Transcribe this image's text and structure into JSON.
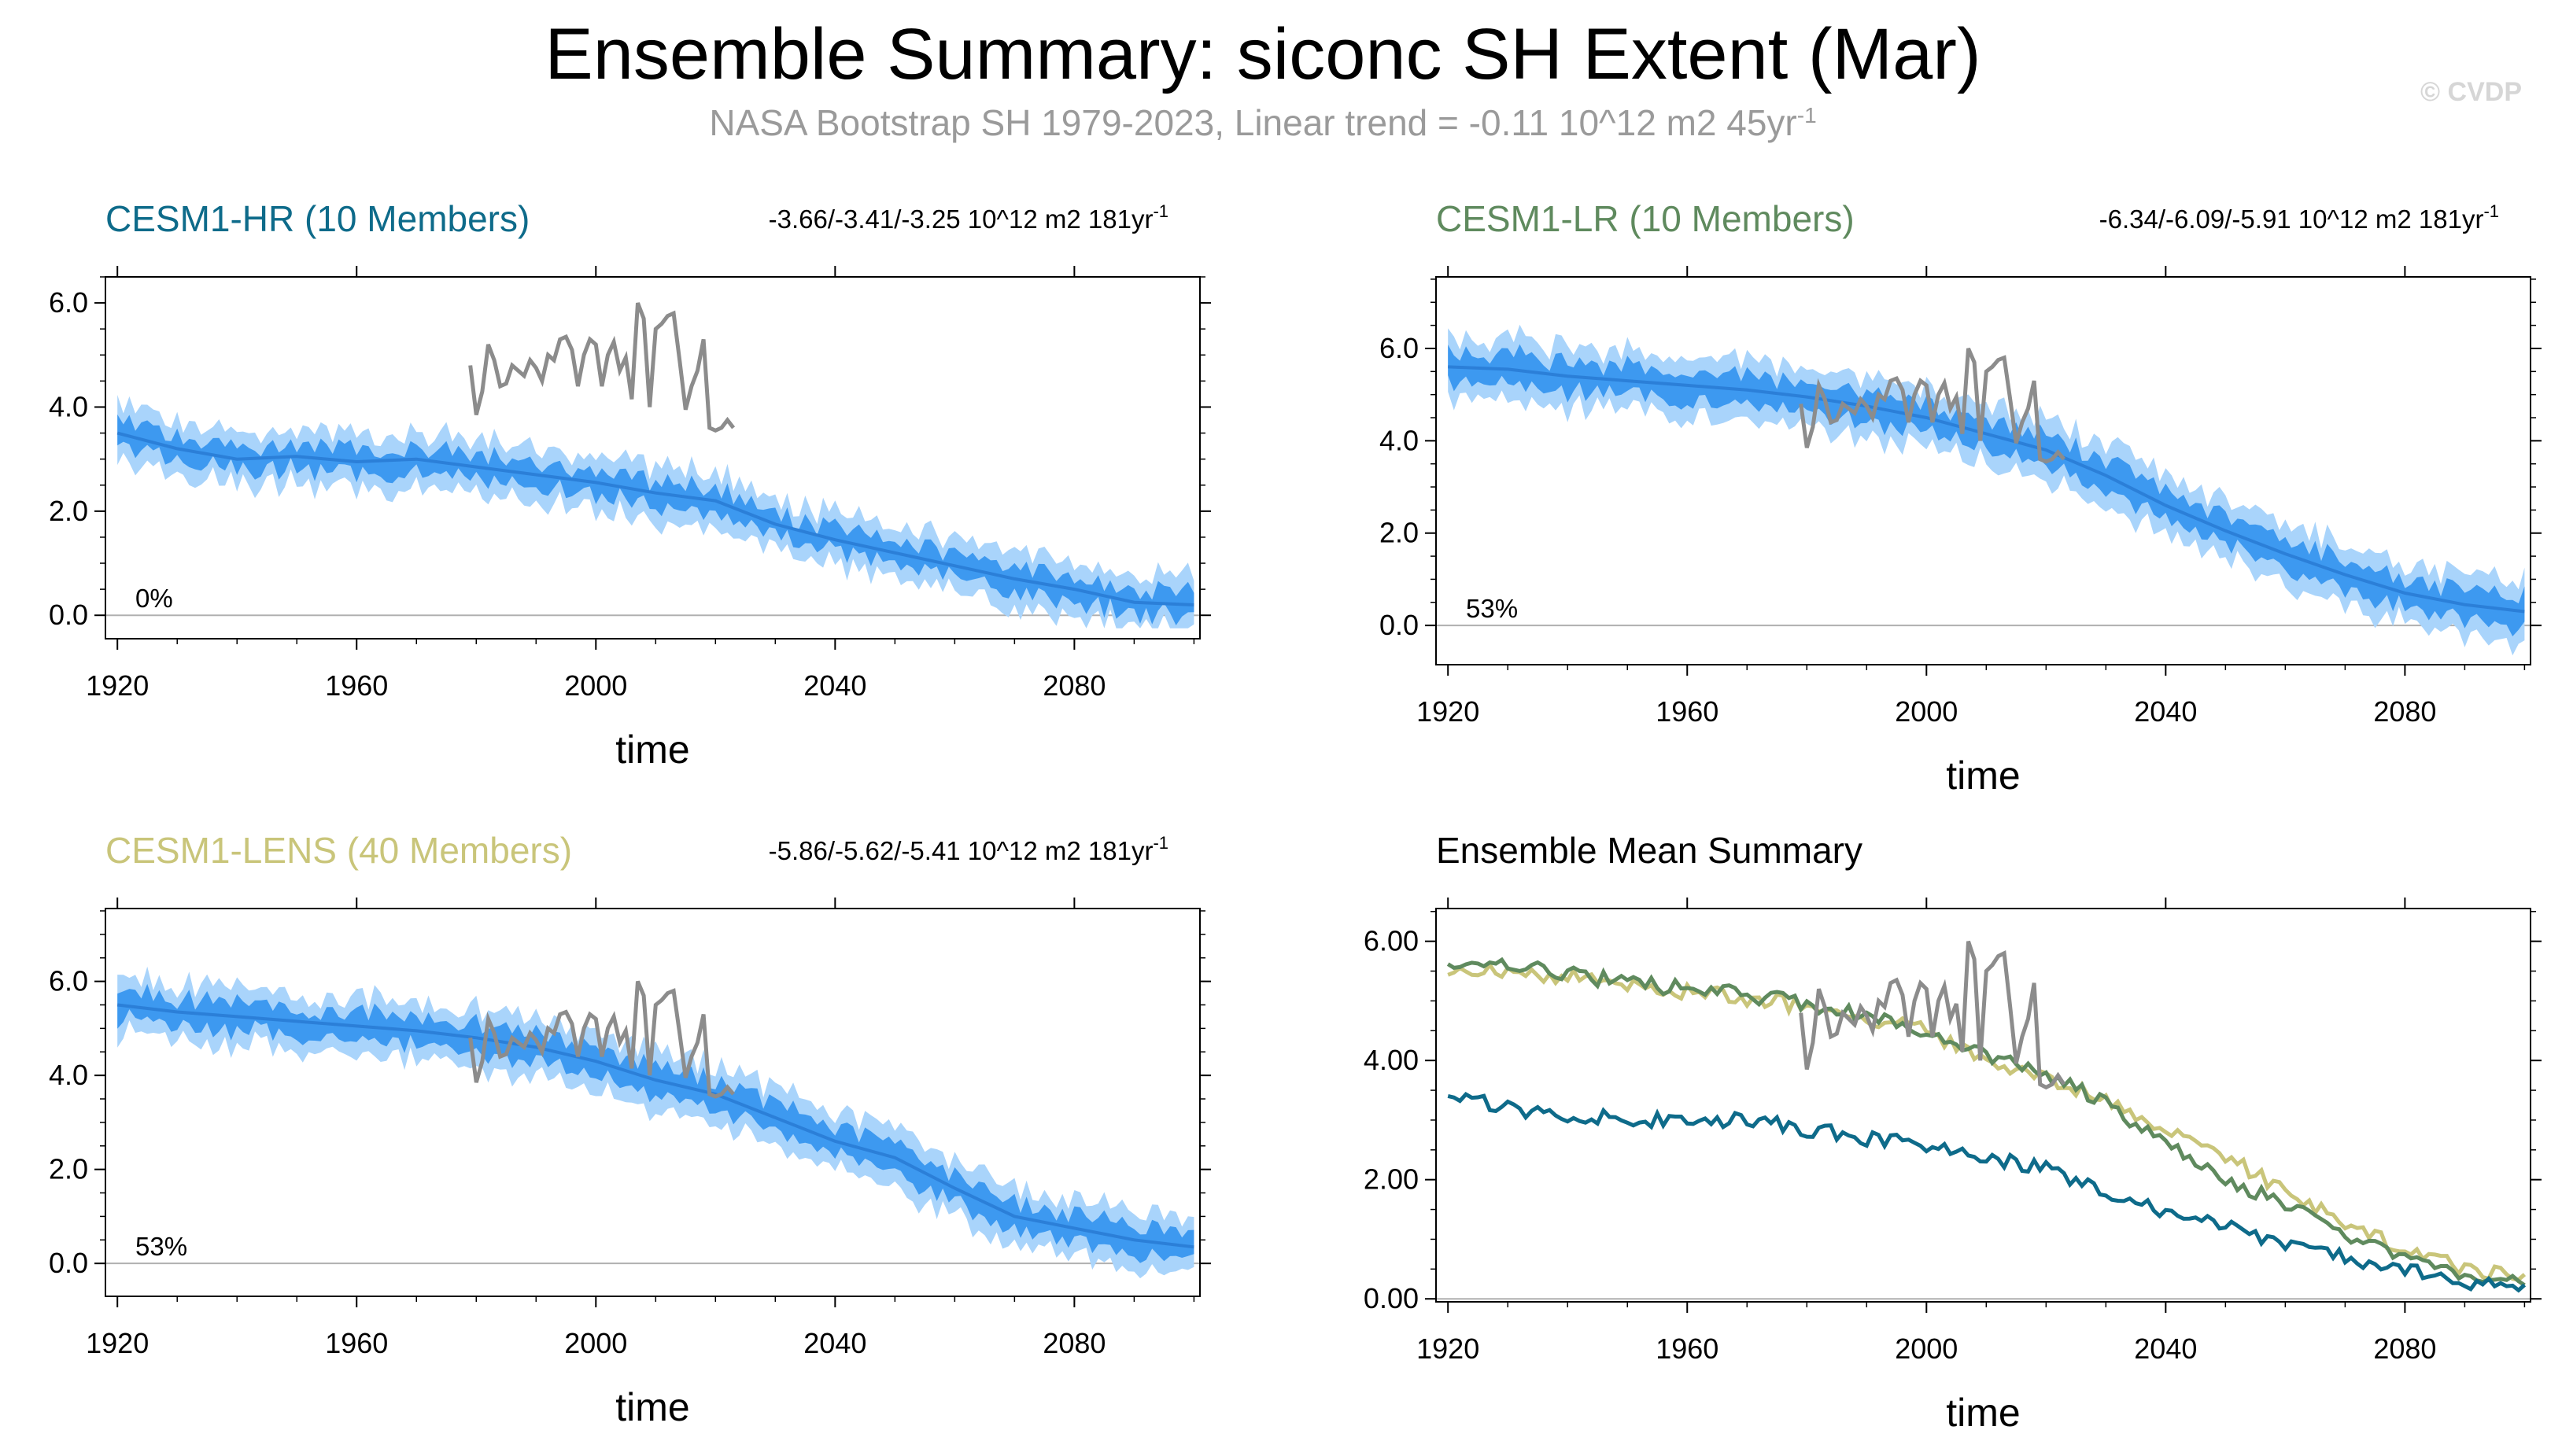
{
  "title": "Ensemble Summary: siconc SH Extent (Mar)",
  "subtitle": "NASA Bootstrap SH 1979-2023, Linear trend = -0.11 10^12 m2 45yr",
  "subtitle_sup": "-1",
  "watermark": "© CVDP",
  "colors": {
    "hr": "#0e6b8a",
    "lr": "#5f8a5e",
    "lens": "#c9c57a",
    "band_outer": "#a9d4fb",
    "band_inner": "#3d99f0",
    "mean_line": "#2b7fd8",
    "obs": "#8c8c8c"
  },
  "chart_data": [
    {
      "id": "hr",
      "type": "area",
      "title": "CESM1-HR (10 Members)",
      "title_color": "#0e6b8a",
      "trend": "-3.66/-3.41/-3.25 10^12 m2 181yr",
      "trend_sup": "-1",
      "percent": "0%",
      "xlabel": "time",
      "xlim": [
        1918,
        2101
      ],
      "ylim": [
        -0.45,
        6.5
      ],
      "xticks": [
        "1920",
        "1960",
        "2000",
        "2040",
        "2080"
      ],
      "yticks": [
        "0.0",
        "2.0",
        "4.0",
        "6.0"
      ],
      "ytick_values": [
        0,
        2,
        4,
        6
      ],
      "ensemble": {
        "x": [
          1920,
          1930,
          1940,
          1950,
          1960,
          1970,
          1980,
          1990,
          2000,
          2010,
          2020,
          2030,
          2040,
          2050,
          2060,
          2070,
          2080,
          2090,
          2100
        ],
        "mean": [
          3.5,
          3.2,
          3.0,
          3.05,
          2.95,
          3.0,
          2.85,
          2.7,
          2.55,
          2.35,
          2.2,
          1.75,
          1.45,
          1.2,
          0.95,
          0.7,
          0.5,
          0.25,
          0.2
        ],
        "spread_inner": 0.22,
        "spread_outer": 0.5
      }
    },
    {
      "id": "lr",
      "type": "area",
      "title": "CESM1-LR (10 Members)",
      "title_color": "#5f8a5e",
      "trend": "-6.34/-6.09/-5.91 10^12 m2 181yr",
      "trend_sup": "-1",
      "percent": "53%",
      "xlabel": "time",
      "xlim": [
        1918,
        2101
      ],
      "ylim": [
        -0.85,
        7.55
      ],
      "xticks": [
        "1920",
        "1960",
        "2000",
        "2040",
        "2080"
      ],
      "yticks": [
        "0.0",
        "2.0",
        "4.0",
        "6.0"
      ],
      "ytick_values": [
        0,
        2,
        4,
        6
      ],
      "ensemble": {
        "x": [
          1920,
          1930,
          1940,
          1950,
          1960,
          1970,
          1980,
          1990,
          2000,
          2010,
          2020,
          2030,
          2040,
          2050,
          2060,
          2070,
          2080,
          2090,
          2100
        ],
        "mean": [
          5.6,
          5.55,
          5.4,
          5.3,
          5.2,
          5.1,
          4.95,
          4.75,
          4.5,
          4.15,
          3.8,
          3.25,
          2.6,
          2.05,
          1.55,
          1.1,
          0.7,
          0.45,
          0.3
        ],
        "spread_inner": 0.3,
        "spread_outer": 0.62
      }
    },
    {
      "id": "lens",
      "type": "area",
      "title": "CESM1-LENS (40 Members)",
      "title_color": "#c9c57a",
      "trend": "-5.86/-5.62/-5.41 10^12 m2 181yr",
      "trend_sup": "-1",
      "percent": "53%",
      "xlabel": "time",
      "xlim": [
        1918,
        2101
      ],
      "ylim": [
        -0.7,
        7.55
      ],
      "xticks": [
        "1920",
        "1960",
        "2000",
        "2040",
        "2080"
      ],
      "yticks": [
        "0.0",
        "2.0",
        "4.0",
        "6.0"
      ],
      "ytick_values": [
        0,
        2,
        4,
        6
      ],
      "ensemble": {
        "x": [
          1920,
          1930,
          1940,
          1950,
          1960,
          1970,
          1980,
          1990,
          2000,
          2010,
          2020,
          2030,
          2040,
          2050,
          2060,
          2070,
          2080,
          2090,
          2100
        ],
        "mean": [
          5.5,
          5.35,
          5.25,
          5.15,
          5.05,
          4.95,
          4.8,
          4.6,
          4.3,
          3.9,
          3.6,
          3.1,
          2.6,
          2.25,
          1.6,
          1.0,
          0.75,
          0.5,
          0.35
        ],
        "spread_inner": 0.28,
        "spread_outer": 0.58
      }
    },
    {
      "id": "summary",
      "type": "line",
      "title": "Ensemble Mean Summary",
      "title_color": "#000000",
      "xlabel": "time",
      "xlim": [
        1918,
        2101
      ],
      "ylim": [
        -0.05,
        6.55
      ],
      "xticks": [
        "1920",
        "1960",
        "2000",
        "2040",
        "2080"
      ],
      "yticks": [
        "0.00",
        "2.00",
        "4.00",
        "6.00"
      ],
      "ytick_values": [
        0,
        2,
        4,
        6
      ],
      "series": [
        {
          "name": "CESM1-LENS",
          "color": "#c9c57a",
          "x": [
            1920,
            1930,
            1940,
            1950,
            1960,
            1970,
            1980,
            1990,
            2000,
            2010,
            2020,
            2030,
            2040,
            2050,
            2060,
            2070,
            2080,
            2090,
            2100
          ],
          "values": [
            5.55,
            5.45,
            5.4,
            5.25,
            5.15,
            5.05,
            4.9,
            4.7,
            4.5,
            4.0,
            3.7,
            3.35,
            2.85,
            2.4,
            1.8,
            1.25,
            0.85,
            0.5,
            0.35
          ]
        },
        {
          "name": "CESM1-LR",
          "color": "#5f8a5e",
          "x": [
            1920,
            1930,
            1940,
            1950,
            1960,
            1970,
            1980,
            1990,
            2000,
            2010,
            2020,
            2030,
            2040,
            2050,
            2060,
            2070,
            2080,
            2090,
            2100
          ],
          "values": [
            5.6,
            5.6,
            5.45,
            5.3,
            5.2,
            5.1,
            4.95,
            4.75,
            4.45,
            4.1,
            3.75,
            3.3,
            2.6,
            2.05,
            1.55,
            1.1,
            0.65,
            0.4,
            0.3
          ]
        },
        {
          "name": "CESM1-HR",
          "color": "#0e6b8a",
          "x": [
            1920,
            1930,
            1940,
            1950,
            1960,
            1970,
            1980,
            1990,
            2000,
            2010,
            2020,
            2030,
            2040,
            2050,
            2060,
            2070,
            2080,
            2090,
            2100
          ],
          "values": [
            3.5,
            3.2,
            3.0,
            3.05,
            2.95,
            3.0,
            2.85,
            2.7,
            2.55,
            2.35,
            2.2,
            1.75,
            1.45,
            1.2,
            0.95,
            0.7,
            0.5,
            0.25,
            0.2
          ]
        }
      ]
    }
  ],
  "observations": {
    "name": "NASA Bootstrap SH",
    "x": [
      1979,
      1980,
      1981,
      1982,
      1983,
      1984,
      1985,
      1986,
      1987,
      1988,
      1989,
      1990,
      1991,
      1992,
      1993,
      1994,
      1995,
      1996,
      1997,
      1998,
      1999,
      2000,
      2001,
      2002,
      2003,
      2004,
      2005,
      2006,
      2007,
      2008,
      2009,
      2010,
      2011,
      2012,
      2013,
      2014,
      2015,
      2016,
      2017,
      2018,
      2019,
      2020,
      2021,
      2022,
      2023
    ],
    "values": [
      4.8,
      3.85,
      4.3,
      5.2,
      4.9,
      4.4,
      4.45,
      4.8,
      4.7,
      4.6,
      4.9,
      4.75,
      4.5,
      5.0,
      4.9,
      5.3,
      5.35,
      5.1,
      4.4,
      5.0,
      5.3,
      5.2,
      4.4,
      5.0,
      5.25,
      4.7,
      4.95,
      4.15,
      6.0,
      5.7,
      4.0,
      5.5,
      5.6,
      5.75,
      5.8,
      4.9,
      3.95,
      4.4,
      4.7,
      5.3,
      3.6,
      3.55,
      3.6,
      3.75,
      3.6
    ]
  }
}
